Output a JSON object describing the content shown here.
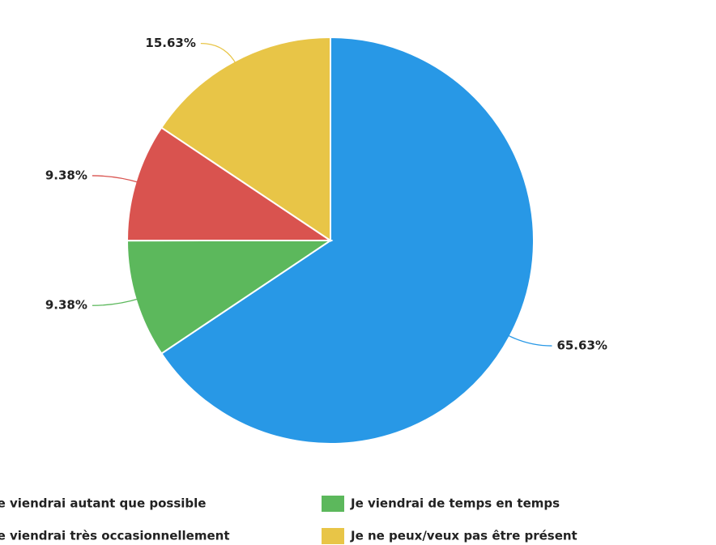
{
  "chart_data": {
    "type": "pie",
    "categories": [
      "Je viendrai autant que possible",
      "Je viendrai de temps en temps",
      "Je viendrai très occasionnellement",
      "Je ne peux/veux pas être présent"
    ],
    "values": [
      65.63,
      9.38,
      9.38,
      15.63
    ],
    "value_labels": [
      "65.63%",
      "9.38%",
      "9.38%",
      "15.63%"
    ],
    "colors": [
      "#2898e6",
      "#5cb85c",
      "#d9534f",
      "#e8c547"
    ]
  }
}
